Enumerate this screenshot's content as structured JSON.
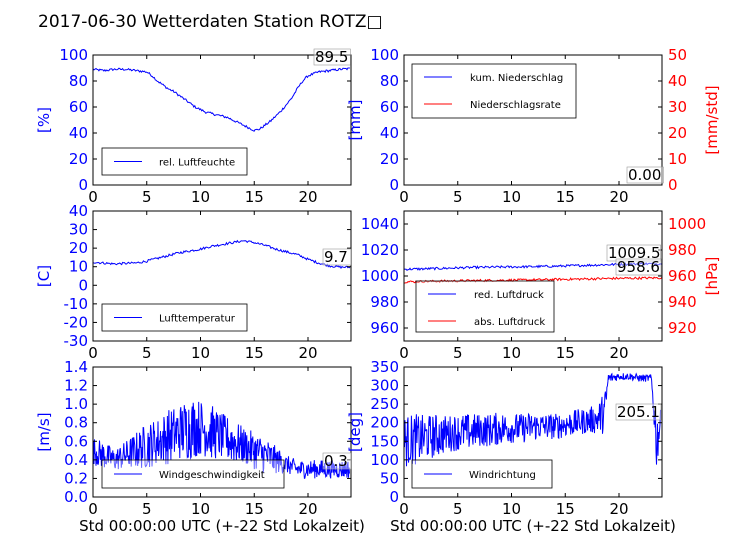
{
  "page": {
    "title": "2017-06-30 Wetterdaten Station ROTZ□"
  },
  "chart_data": [
    {
      "type": "line",
      "panel": "top-left",
      "ylabel": "[%]",
      "xlim": [
        0,
        24
      ],
      "ylim": [
        0,
        100
      ],
      "xticks": [
        0,
        5,
        10,
        15,
        20
      ],
      "yticks": [
        0,
        20,
        40,
        60,
        80,
        100
      ],
      "annotation": "89.5",
      "legend": "bottom-left",
      "grid": false,
      "series": [
        {
          "name": "rel. Luftfeuchte",
          "color": "#0000ff",
          "x": [
            0,
            1,
            2,
            3,
            4,
            5,
            5.5,
            6,
            6.5,
            7,
            7.5,
            8,
            8.5,
            9,
            9.5,
            10,
            10.5,
            11,
            11.5,
            12,
            12.5,
            13,
            13.5,
            14,
            14.5,
            15,
            15.5,
            16,
            16.5,
            17,
            17.5,
            18,
            18.5,
            19,
            19.5,
            20,
            21,
            22,
            23,
            23.9
          ],
          "values": [
            89,
            88,
            89,
            89,
            88,
            87,
            84,
            80,
            77,
            74,
            72,
            69,
            66,
            63,
            60,
            58,
            56,
            55,
            54,
            53,
            52,
            50,
            48,
            46,
            44,
            42,
            43,
            46,
            49,
            53,
            57,
            62,
            67,
            74,
            80,
            84,
            87,
            88,
            89,
            89.5
          ]
        }
      ]
    },
    {
      "type": "line",
      "panel": "top-right",
      "ylabel": "[mm]",
      "ylabel_right": "[mm/std]",
      "xlim": [
        0,
        24
      ],
      "ylim": [
        0,
        100
      ],
      "ylim_right": [
        0,
        50
      ],
      "xticks": [
        0,
        5,
        10,
        15,
        20
      ],
      "yticks": [
        0,
        20,
        40,
        60,
        80,
        100
      ],
      "yticks_right": [
        0,
        10,
        20,
        30,
        40,
        50
      ],
      "annotation": "0.00",
      "legend": "top-left",
      "grid": false,
      "series": [
        {
          "name": "kum. Niederschlag",
          "color": "#0000ff",
          "axis": "left",
          "x": [
            0,
            24
          ],
          "values": [
            0,
            0
          ]
        },
        {
          "name": "Niederschlagsrate",
          "color": "#ff0000",
          "axis": "right",
          "x": [
            0,
            24
          ],
          "values": [
            0,
            0
          ]
        }
      ]
    },
    {
      "type": "line",
      "panel": "middle-left",
      "ylabel": "[C]",
      "xlim": [
        0,
        24
      ],
      "ylim": [
        -30,
        40
      ],
      "xticks": [
        0,
        5,
        10,
        15,
        20
      ],
      "yticks": [
        -30,
        -20,
        -10,
        0,
        10,
        20,
        30,
        40
      ],
      "annotation": "9.7",
      "legend": "bottom-left",
      "grid": false,
      "series": [
        {
          "name": "Lufttemperatur",
          "color": "#0000ff",
          "x": [
            0,
            1,
            2,
            3,
            4,
            5,
            6,
            7,
            8,
            9,
            10,
            11,
            12,
            13,
            14,
            15,
            16,
            17,
            18,
            19,
            20,
            21,
            22,
            23,
            23.9
          ],
          "values": [
            12.5,
            12,
            11.5,
            11.8,
            12,
            13,
            14.5,
            16,
            17.5,
            18.5,
            19.5,
            21,
            22,
            23,
            24,
            23,
            21.5,
            19.5,
            18,
            16.5,
            14,
            12,
            10.5,
            9.8,
            9.7
          ]
        }
      ]
    },
    {
      "type": "line",
      "panel": "middle-right",
      "ylabel_right": "[hPa]",
      "xlim": [
        0,
        24
      ],
      "ylim": [
        950,
        1050
      ],
      "ylim_right": [
        910,
        1010
      ],
      "xticks": [
        0,
        5,
        10,
        15,
        20
      ],
      "yticks": [
        960,
        980,
        1000,
        1020,
        1040
      ],
      "yticks_right": [
        920,
        940,
        960,
        980,
        1000
      ],
      "annotations": [
        "1009.5",
        "958.6"
      ],
      "legend": "bottom-left",
      "grid": false,
      "series": [
        {
          "name": "red. Luftdruck",
          "color": "#0000ff",
          "axis": "left",
          "x": [
            0,
            2,
            4,
            6,
            8,
            10,
            12,
            14,
            16,
            18,
            20,
            22,
            24
          ],
          "values": [
            1005.2,
            1005.5,
            1006,
            1006.5,
            1006.8,
            1007,
            1007.2,
            1007.5,
            1008,
            1008.5,
            1009,
            1009.3,
            1009.5
          ]
        },
        {
          "name": "abs. Luftdruck",
          "color": "#ff0000",
          "axis": "right",
          "x": [
            0,
            2,
            4,
            6,
            8,
            10,
            12,
            14,
            16,
            18,
            20,
            22,
            24
          ],
          "values": [
            955.5,
            955.8,
            956.1,
            956.4,
            956.6,
            956.8,
            957,
            957.3,
            957.6,
            957.9,
            958.2,
            958.4,
            958.6
          ]
        }
      ]
    },
    {
      "type": "line",
      "panel": "bottom-left",
      "ylabel": "[m/s]",
      "xlabel": "Std 00:00:00 UTC (+-22 Std Lokalzeit)",
      "xlim": [
        0,
        24
      ],
      "ylim": [
        0,
        1.4
      ],
      "xticks": [
        0,
        5,
        10,
        15,
        20
      ],
      "yticks": [
        0.0,
        0.2,
        0.4,
        0.6,
        0.8,
        1.0,
        1.2,
        1.4
      ],
      "annotation": "0.3",
      "legend": "bottom-left",
      "grid": false,
      "series": [
        {
          "name": "Windgeschwindigkeit",
          "color": "#0000ff",
          "x": [
            0,
            1,
            2,
            3,
            4,
            5,
            6,
            7,
            8,
            9,
            10,
            11,
            12,
            13,
            14,
            15,
            16,
            17,
            18,
            19,
            20,
            21,
            22,
            23,
            23.9
          ],
          "values": [
            0.5,
            0.45,
            0.4,
            0.45,
            0.5,
            0.55,
            0.6,
            0.65,
            0.7,
            0.75,
            0.75,
            0.7,
            0.65,
            0.6,
            0.55,
            0.5,
            0.45,
            0.4,
            0.35,
            0.3,
            0.3,
            0.3,
            0.3,
            0.3,
            0.3
          ],
          "amplitude": [
            0.15,
            0.15,
            0.12,
            0.15,
            0.2,
            0.25,
            0.25,
            0.3,
            0.3,
            0.35,
            0.3,
            0.3,
            0.25,
            0.25,
            0.2,
            0.2,
            0.2,
            0.15,
            0.1,
            0.1,
            0.1,
            0.1,
            0.1,
            0.1,
            0.1
          ]
        }
      ]
    },
    {
      "type": "line",
      "panel": "bottom-right",
      "ylabel": "[deg]",
      "xlabel": "Std 00:00:00 UTC (+-22 Std Lokalzeit)",
      "xlim": [
        0,
        24
      ],
      "ylim": [
        0,
        350
      ],
      "xticks": [
        0,
        5,
        10,
        15,
        20
      ],
      "yticks": [
        0,
        50,
        100,
        150,
        200,
        250,
        300,
        350
      ],
      "annotation": "205.1",
      "legend": "bottom-left",
      "grid": false,
      "series": [
        {
          "name": "Windrichtung",
          "color": "#0000ff",
          "x": [
            0,
            1,
            2,
            3,
            4,
            5,
            6,
            7,
            8,
            9,
            10,
            11,
            12,
            13,
            14,
            15,
            16,
            17,
            18,
            18.7,
            19,
            20,
            21,
            22,
            23,
            23.5,
            23.9
          ],
          "values": [
            150,
            155,
            160,
            165,
            170,
            175,
            175,
            180,
            180,
            185,
            185,
            185,
            190,
            190,
            190,
            195,
            200,
            205,
            210,
            230,
            320,
            325,
            325,
            320,
            320,
            150,
            205.1
          ],
          "amplitude": [
            70,
            70,
            60,
            60,
            50,
            50,
            50,
            45,
            45,
            45,
            40,
            40,
            40,
            35,
            35,
            35,
            35,
            35,
            40,
            60,
            15,
            10,
            10,
            10,
            10,
            80,
            30
          ]
        }
      ]
    }
  ]
}
